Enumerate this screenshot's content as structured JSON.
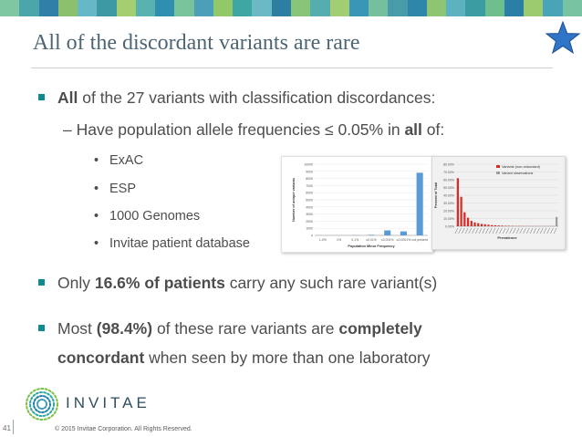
{
  "header": {
    "stripe_colors": [
      "#7fc7a2",
      "#4aa6a8",
      "#2f7fa8",
      "#8cc06c",
      "#66b7c7",
      "#3d9aa4",
      "#a5cf6f",
      "#58b3b0",
      "#2e8fb1",
      "#78c39a",
      "#4c9fb9",
      "#93c86a",
      "#3fa7a3",
      "#6ab9c4",
      "#2d7ea3",
      "#88c578",
      "#55adb0",
      "#a1cd73",
      "#3a96b6",
      "#74bf9c",
      "#489ca9",
      "#2f86ab",
      "#8ec573",
      "#5cb2c0",
      "#3b9ca1",
      "#6fbf8e",
      "#2b7fa6",
      "#9bcb6e",
      "#4aa4b8",
      "#79c4a0"
    ],
    "title": "All of the discordant variants are rare",
    "star_icon_color": "#2f74c6"
  },
  "bullets": {
    "b1_strong": "All",
    "b1_rest": " of the 27 variants with classification discordances:",
    "b2_prefix": "– Have population allele frequencies ≤ 0.05% in ",
    "b2_strong": "all",
    "b2_suffix": " of:",
    "subitems": [
      "ExAC",
      "ESP",
      "1000 Genomes",
      "Invitae patient database"
    ],
    "bullet_dot": "•",
    "b3_prefix": "Only ",
    "b3_strong": "16.6% of patients",
    "b3_rest": " carry any such rare variant(s)",
    "b4_prefix": "Most ",
    "b4_strong1": "(98.4%)",
    "b4_mid": " of these rare variants are ",
    "b4_strong2": "completely",
    "b4_strong3": "concordant",
    "b4_rest": " when seen by more than one laboratory"
  },
  "chart_data": [
    {
      "type": "bar",
      "categories": [
        "1-0%",
        "1%",
        "0.1%",
        "≤0.01%",
        "≤0.001%",
        "≤0.0001%",
        "not present"
      ],
      "values": [
        5,
        0,
        30,
        80,
        700,
        560,
        8800
      ],
      "ylim": [
        0,
        10000
      ],
      "yticks": [
        "0",
        "1000",
        "2000",
        "3000",
        "4000",
        "5000",
        "6000",
        "7000",
        "8000",
        "9000",
        "10000"
      ],
      "xlabel": "Population Minor Frequency",
      "ylabel": "Number of unique variants",
      "bar_color": "#5b9bd5"
    },
    {
      "type": "bar",
      "series": [
        {
          "name": "Variants (non-redundant)",
          "color": "#d62b27"
        },
        {
          "name": "Variant observations",
          "color": "#9e9e9e"
        }
      ],
      "values": [
        62,
        38,
        18,
        11,
        7,
        5,
        4,
        3,
        2.5,
        2,
        1.5,
        1.2,
        1,
        0.8,
        0.6,
        0.5,
        0.4,
        0.3,
        0.3,
        0.2,
        0.2,
        0.1,
        0.1,
        0.1,
        0.1,
        0.1,
        0.1,
        0.1,
        0.1,
        12
      ],
      "ylim": [
        0,
        80
      ],
      "yticks": [
        "0.00%",
        "10.00%",
        "20.00%",
        "30.00%",
        "40.00%",
        "50.00%",
        "60.00%",
        "70.00%",
        "80.00%"
      ],
      "xlabel": "Prevalence",
      "ylabel": "Percent of Total"
    }
  ],
  "footer": {
    "logo_text": "INVITAE",
    "page_number": "41",
    "copyright": "© 2015 Invitae Corporation. All Rights Reserved."
  }
}
